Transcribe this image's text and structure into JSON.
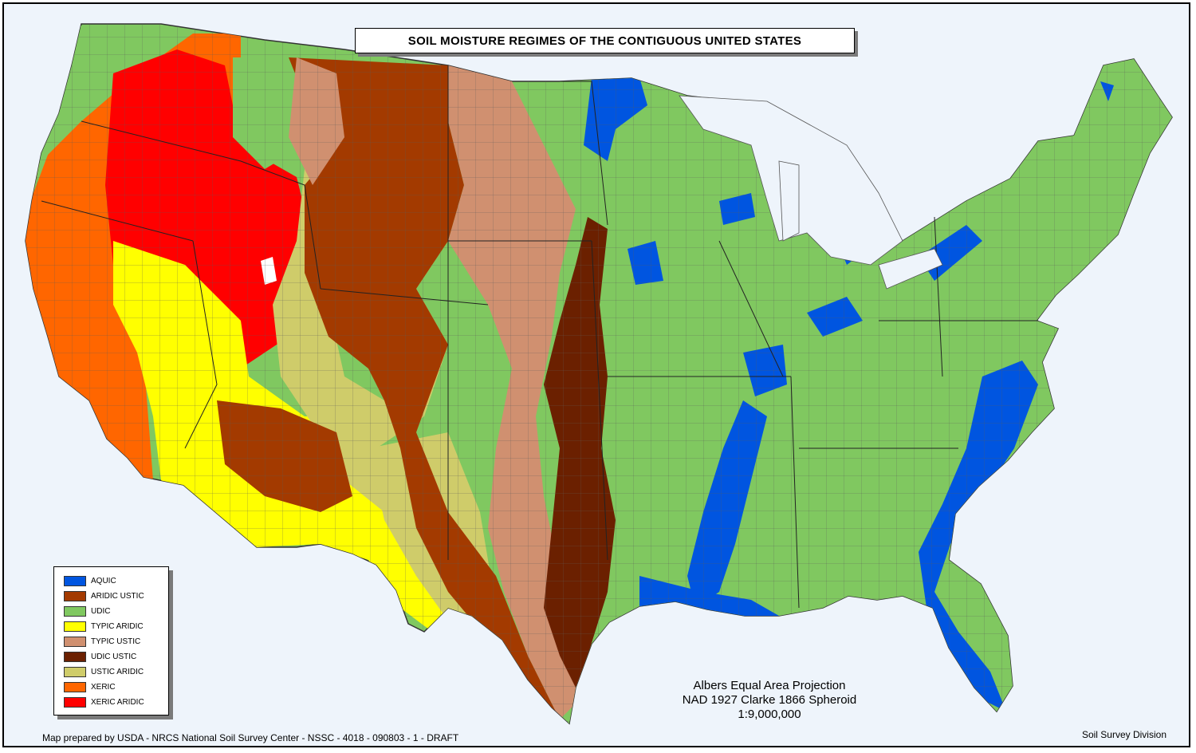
{
  "title": "SOIL MOISTURE REGIMES OF THE CONTIGUOUS UNITED STATES",
  "legend": [
    {
      "label": "AQUIC",
      "color": "#0055e0"
    },
    {
      "label": "ARIDIC USTIC",
      "color": "#a33a00"
    },
    {
      "label": "UDIC",
      "color": "#80c860"
    },
    {
      "label": "TYPIC ARIDIC",
      "color": "#ffff00"
    },
    {
      "label": "TYPIC USTIC",
      "color": "#d09070"
    },
    {
      "label": "UDIC USTIC",
      "color": "#6b2000"
    },
    {
      "label": "USTIC ARIDIC",
      "color": "#cfcc6a"
    },
    {
      "label": "XERIC",
      "color": "#ff6600"
    },
    {
      "label": "XERIC ARIDIC",
      "color": "#ff0000"
    }
  ],
  "projection": {
    "line1": "Albers Equal Area Projection",
    "line2": "NAD 1927 Clarke 1866 Spheroid",
    "line3": "1:9,000,000"
  },
  "credit": "Map prepared by USDA - NRCS National Soil Survey Center - NSSC - 4018 - 090803 - 1 - DRAFT",
  "division": "Soil Survey Division"
}
